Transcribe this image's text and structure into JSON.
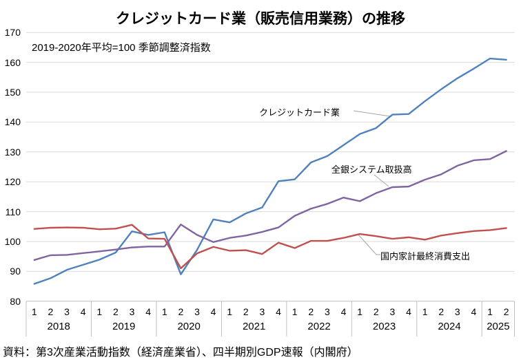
{
  "title": "クレジットカード業（販売信用業務）の推移",
  "subtitle": "2019-2020年平均=100 季節調整済指数",
  "source": "資料：第3次産業活動指数（経済産業省）、四半期別GDP速報（内閣府）",
  "chart_data": {
    "type": "line",
    "title": "クレジットカード業（販売信用業務）の推移",
    "subtitle": "2019-2020年平均=100 季節調整済指数",
    "ylim": [
      80,
      170
    ],
    "ytick_step": 10,
    "grid": true,
    "legend_position": "inline-annotations",
    "x_years": [
      {
        "year": "2018",
        "quarters": [
          "1",
          "2",
          "3",
          "4"
        ]
      },
      {
        "year": "2019",
        "quarters": [
          "1",
          "2",
          "3",
          "4"
        ]
      },
      {
        "year": "2020",
        "quarters": [
          "1",
          "2",
          "3",
          "4"
        ]
      },
      {
        "year": "2021",
        "quarters": [
          "1",
          "2",
          "3",
          "4"
        ]
      },
      {
        "year": "2022",
        "quarters": [
          "1",
          "2",
          "3",
          "4"
        ]
      },
      {
        "year": "2023",
        "quarters": [
          "1",
          "2",
          "3",
          "4"
        ]
      },
      {
        "year": "2024",
        "quarters": [
          "1",
          "2",
          "3",
          "4"
        ]
      },
      {
        "year": "2025",
        "quarters": [
          "1",
          "2"
        ]
      }
    ],
    "series": [
      {
        "name": "クレジットカード業",
        "color": "#4F81BD",
        "values": [
          85.8,
          87.7,
          90.5,
          92.2,
          93.9,
          96.3,
          103.4,
          102.2,
          103.1,
          89.0,
          97.2,
          107.4,
          106.4,
          109.4,
          111.4,
          120.2,
          120.8,
          126.5,
          128.6,
          132.3,
          136.0,
          138.0,
          142.5,
          142.7,
          147.0,
          151.0,
          154.7,
          157.9,
          161.3,
          160.9
        ]
      },
      {
        "name": "全銀システム取扱高",
        "color": "#8064A2",
        "values": [
          93.8,
          95.4,
          95.5,
          96.1,
          96.7,
          97.3,
          98.0,
          98.3,
          98.3,
          105.7,
          102.2,
          99.8,
          101.2,
          102.0,
          103.2,
          104.7,
          108.6,
          111.0,
          112.6,
          114.7,
          113.5,
          116.2,
          118.2,
          118.4,
          120.7,
          122.5,
          125.4,
          127.2,
          127.6,
          130.3
        ]
      },
      {
        "name": "国内家計最終消費支出",
        "color": "#C0504D",
        "values": [
          104.2,
          104.6,
          104.7,
          104.6,
          104.1,
          104.3,
          105.6,
          101.0,
          100.9,
          91.0,
          96.0,
          98.2,
          96.9,
          97.1,
          95.8,
          99.6,
          97.8,
          100.2,
          100.2,
          101.2,
          102.5,
          101.8,
          100.9,
          101.4,
          100.6,
          102.0,
          102.8,
          103.5,
          103.8,
          104.5
        ]
      }
    ],
    "colors": {
      "gridline": "#D9D9D9",
      "axis": "#BFBFBF",
      "leader_line": "#A6A6A6"
    }
  }
}
